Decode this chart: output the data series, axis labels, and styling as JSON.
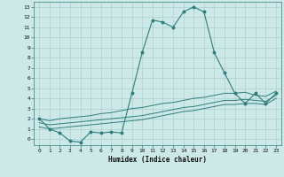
{
  "x_humidex": [
    0,
    1,
    2,
    3,
    4,
    5,
    6,
    7,
    8,
    9,
    10,
    11,
    12,
    13,
    14,
    15,
    16,
    17,
    18,
    19,
    20,
    21,
    22,
    23
  ],
  "y_main": [
    2,
    1,
    0.6,
    -0.2,
    -0.3,
    0.7,
    0.6,
    0.7,
    0.6,
    4.5,
    8.5,
    11.7,
    11.5,
    11.0,
    12.5,
    13.0,
    12.5,
    8.5,
    6.5,
    4.5,
    3.5,
    4.5,
    3.5,
    4.5
  ],
  "y_line1": [
    2.0,
    1.8,
    2.0,
    2.1,
    2.2,
    2.3,
    2.5,
    2.6,
    2.8,
    3.0,
    3.1,
    3.3,
    3.5,
    3.6,
    3.8,
    4.0,
    4.1,
    4.3,
    4.5,
    4.5,
    4.6,
    4.3,
    4.2,
    4.7
  ],
  "y_line2": [
    1.6,
    1.4,
    1.5,
    1.6,
    1.7,
    1.8,
    1.9,
    2.0,
    2.1,
    2.2,
    2.3,
    2.5,
    2.7,
    2.9,
    3.1,
    3.2,
    3.4,
    3.6,
    3.8,
    3.8,
    3.9,
    3.8,
    3.7,
    4.3
  ],
  "y_line3": [
    1.2,
    1.0,
    1.1,
    1.2,
    1.3,
    1.4,
    1.5,
    1.6,
    1.7,
    1.8,
    1.9,
    2.1,
    2.3,
    2.5,
    2.7,
    2.8,
    3.0,
    3.2,
    3.4,
    3.4,
    3.5,
    3.5,
    3.4,
    4.0
  ],
  "line_color": "#2e7d7d",
  "bg_color": "#cce9e8",
  "grid_color": "#aacfce",
  "xlabel": "Humidex (Indice chaleur)",
  "xlim": [
    -0.5,
    23.5
  ],
  "ylim": [
    -0.6,
    13.5
  ],
  "yticks": [
    0,
    1,
    2,
    3,
    4,
    5,
    6,
    7,
    8,
    9,
    10,
    11,
    12,
    13
  ],
  "xticks": [
    0,
    1,
    2,
    3,
    4,
    5,
    6,
    7,
    8,
    9,
    10,
    11,
    12,
    13,
    14,
    15,
    16,
    17,
    18,
    19,
    20,
    21,
    22,
    23
  ]
}
